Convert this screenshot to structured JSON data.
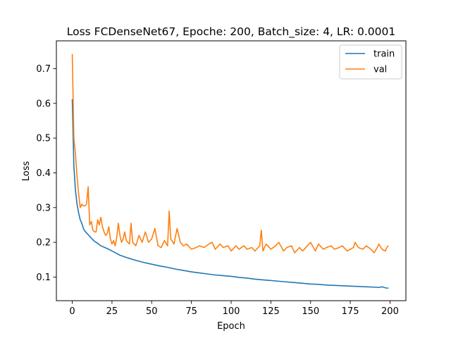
{
  "chart_data": {
    "type": "line",
    "title": "Loss FCDenseNet67, Epoche: 200, Batch_size: 4, LR: 0.0001",
    "xlabel": "Epoch",
    "ylabel": "Loss",
    "xlim": [
      -10,
      210
    ],
    "ylim": [
      0.032,
      0.78
    ],
    "xticks": [
      0,
      25,
      50,
      75,
      100,
      125,
      150,
      175,
      200
    ],
    "yticks": [
      0.1,
      0.2,
      0.3,
      0.4,
      0.5,
      0.6,
      0.7
    ],
    "xtick_labels": [
      "0",
      "25",
      "50",
      "75",
      "100",
      "125",
      "150",
      "175",
      "200"
    ],
    "ytick_labels": [
      "0.1",
      "0.2",
      "0.3",
      "0.4",
      "0.5",
      "0.6",
      "0.7"
    ],
    "grid": false,
    "legend": "top-right",
    "series": [
      {
        "name": "train",
        "color": "#1f77b4",
        "x": [
          0,
          1,
          2,
          3,
          4,
          5,
          6,
          7,
          8,
          10,
          12,
          14,
          16,
          18,
          20,
          22,
          25,
          28,
          30,
          35,
          40,
          45,
          50,
          55,
          60,
          65,
          70,
          75,
          80,
          85,
          90,
          95,
          100,
          105,
          110,
          115,
          120,
          125,
          130,
          135,
          140,
          145,
          150,
          155,
          160,
          165,
          170,
          175,
          180,
          185,
          190,
          193,
          195,
          197,
          199
        ],
        "y": [
          0.612,
          0.42,
          0.35,
          0.31,
          0.285,
          0.265,
          0.255,
          0.24,
          0.232,
          0.222,
          0.212,
          0.203,
          0.197,
          0.19,
          0.186,
          0.182,
          0.175,
          0.168,
          0.163,
          0.155,
          0.148,
          0.142,
          0.137,
          0.132,
          0.128,
          0.123,
          0.119,
          0.115,
          0.112,
          0.109,
          0.106,
          0.104,
          0.102,
          0.099,
          0.097,
          0.094,
          0.092,
          0.09,
          0.088,
          0.086,
          0.084,
          0.082,
          0.08,
          0.079,
          0.077,
          0.076,
          0.075,
          0.074,
          0.073,
          0.072,
          0.071,
          0.07,
          0.072,
          0.069,
          0.068
        ]
      },
      {
        "name": "val",
        "color": "#ff7f0e",
        "x": [
          0,
          1,
          2,
          3,
          4,
          5,
          6,
          7,
          8,
          9,
          10,
          11,
          12,
          13,
          14,
          15,
          16,
          17,
          18,
          19,
          20,
          21,
          22,
          23,
          24,
          25,
          26,
          27,
          28,
          29,
          30,
          31,
          32,
          33,
          34,
          35,
          36,
          37,
          38,
          39,
          40,
          42,
          44,
          46,
          48,
          50,
          52,
          54,
          56,
          58,
          60,
          61,
          62,
          64,
          66,
          68,
          70,
          72,
          75,
          78,
          80,
          83,
          86,
          88,
          90,
          93,
          95,
          98,
          100,
          103,
          105,
          108,
          110,
          113,
          115,
          118,
          119,
          120,
          122,
          125,
          128,
          130,
          133,
          135,
          138,
          140,
          143,
          145,
          148,
          150,
          153,
          155,
          158,
          160,
          163,
          165,
          168,
          170,
          173,
          175,
          177,
          178,
          180,
          183,
          185,
          188,
          190,
          192,
          193,
          195,
          197,
          198,
          199
        ],
        "y": [
          0.742,
          0.5,
          0.455,
          0.39,
          0.34,
          0.3,
          0.31,
          0.305,
          0.305,
          0.31,
          0.36,
          0.25,
          0.26,
          0.235,
          0.23,
          0.23,
          0.265,
          0.25,
          0.272,
          0.245,
          0.23,
          0.22,
          0.225,
          0.245,
          0.21,
          0.195,
          0.205,
          0.19,
          0.215,
          0.255,
          0.22,
          0.2,
          0.21,
          0.23,
          0.205,
          0.2,
          0.195,
          0.255,
          0.2,
          0.195,
          0.19,
          0.22,
          0.2,
          0.23,
          0.2,
          0.21,
          0.24,
          0.19,
          0.185,
          0.205,
          0.19,
          0.29,
          0.21,
          0.195,
          0.24,
          0.2,
          0.19,
          0.195,
          0.18,
          0.185,
          0.19,
          0.185,
          0.195,
          0.2,
          0.18,
          0.195,
          0.185,
          0.19,
          0.175,
          0.19,
          0.18,
          0.19,
          0.18,
          0.185,
          0.175,
          0.19,
          0.235,
          0.175,
          0.195,
          0.18,
          0.19,
          0.2,
          0.175,
          0.185,
          0.19,
          0.17,
          0.185,
          0.175,
          0.19,
          0.2,
          0.175,
          0.195,
          0.18,
          0.185,
          0.19,
          0.18,
          0.185,
          0.19,
          0.175,
          0.18,
          0.185,
          0.2,
          0.185,
          0.18,
          0.19,
          0.18,
          0.17,
          0.185,
          0.195,
          0.18,
          0.175,
          0.185,
          0.19
        ]
      }
    ]
  }
}
